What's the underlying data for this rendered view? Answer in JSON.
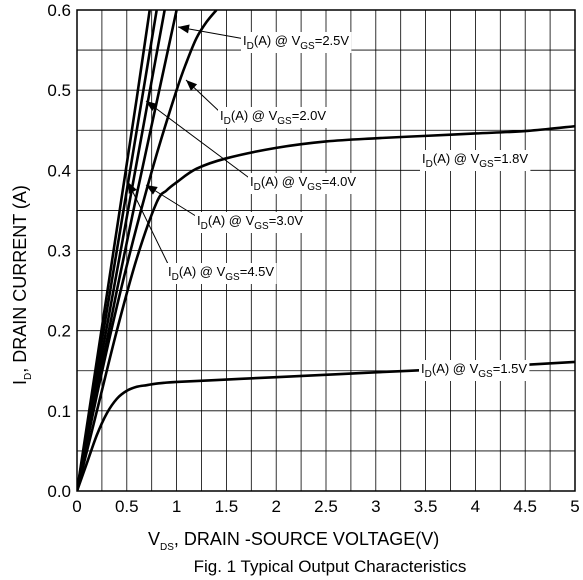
{
  "chart_data": {
    "type": "line",
    "title": "Fig. 1 Typical Output Characteristics",
    "xlabel": {
      "main": "V",
      "sub": "DS",
      "rest": ", DRAIN -SOURCE VOLTAGE(V)"
    },
    "ylabel": {
      "main": "I",
      "sub": "D",
      "rest": ", DRAIN CURRENT (A)"
    },
    "xlim": [
      0,
      5
    ],
    "ylim": [
      0,
      0.6
    ],
    "xticks": [
      "0",
      "0.5",
      "1",
      "1.5",
      "2",
      "2.5",
      "3",
      "3.5",
      "4",
      "4.5",
      "5"
    ],
    "yticks": [
      "0.0",
      "0.1",
      "0.2",
      "0.3",
      "0.4",
      "0.5",
      "0.6"
    ],
    "grid": true,
    "series": [
      {
        "name": "VGS=1.5V",
        "label_main": "I",
        "label_sub": "D",
        "label_mid": "(A) @ V",
        "label_sub2": "GS",
        "label_end": "=1.5V",
        "x": [
          0,
          0.1,
          0.2,
          0.3,
          0.4,
          0.5,
          0.6,
          0.7,
          0.8,
          1.0,
          1.5,
          2.0,
          3.0,
          4.0,
          5.0
        ],
        "y": [
          0,
          0.035,
          0.07,
          0.097,
          0.115,
          0.125,
          0.13,
          0.132,
          0.134,
          0.136,
          0.139,
          0.142,
          0.148,
          0.154,
          0.161
        ]
      },
      {
        "name": "VGS=1.8V",
        "label_main": "I",
        "label_sub": "D",
        "label_mid": "(A) @ V",
        "label_sub2": "GS",
        "label_end": "=1.8V",
        "x": [
          0,
          0.2,
          0.4,
          0.6,
          0.8,
          0.9,
          1.0,
          1.2,
          1.5,
          2.0,
          2.5,
          3.0,
          3.5,
          4.0,
          4.5,
          5.0
        ],
        "y": [
          0,
          0.1,
          0.2,
          0.29,
          0.36,
          0.375,
          0.385,
          0.402,
          0.415,
          0.428,
          0.436,
          0.44,
          0.443,
          0.446,
          0.449,
          0.455
        ]
      },
      {
        "name": "VGS=2.0V",
        "label_main": "I",
        "label_sub": "D",
        "label_mid": "(A) @ V",
        "label_sub2": "GS",
        "label_end": "=2.0V",
        "x": [
          0,
          0.2,
          0.4,
          0.6,
          0.8,
          1.0,
          1.1,
          1.2,
          1.3,
          1.4
        ],
        "y": [
          0,
          0.12,
          0.23,
          0.33,
          0.42,
          0.5,
          0.535,
          0.565,
          0.585,
          0.6
        ]
      },
      {
        "name": "VGS=2.5V",
        "label_main": "I",
        "label_sub": "D",
        "label_mid": "(A) @ V",
        "label_sub2": "GS",
        "label_end": "=2.5V",
        "x": [
          0,
          0.2,
          0.4,
          0.6,
          0.8,
          1.0
        ],
        "y": [
          0,
          0.125,
          0.25,
          0.37,
          0.485,
          0.6
        ]
      },
      {
        "name": "VGS=3.0V",
        "label_main": "I",
        "label_sub": "D",
        "label_mid": "(A) @ V",
        "label_sub2": "GS",
        "label_end": "=3.0V",
        "x": [
          0,
          0.3,
          0.6,
          0.88
        ],
        "y": [
          0,
          0.205,
          0.41,
          0.6
        ]
      },
      {
        "name": "VGS=4.0V",
        "label_main": "I",
        "label_sub": "D",
        "label_mid": "(A) @ V",
        "label_sub2": "GS",
        "label_end": "=4.0V",
        "x": [
          0,
          0.3,
          0.6,
          0.8
        ],
        "y": [
          0,
          0.225,
          0.45,
          0.6
        ]
      },
      {
        "name": "VGS=4.5V",
        "label_main": "I",
        "label_sub": "D",
        "label_mid": "(A) @ V",
        "label_sub2": "GS",
        "label_end": "=4.5V",
        "x": [
          0,
          0.3,
          0.6,
          0.73
        ],
        "y": [
          0,
          0.245,
          0.49,
          0.6
        ]
      }
    ]
  }
}
